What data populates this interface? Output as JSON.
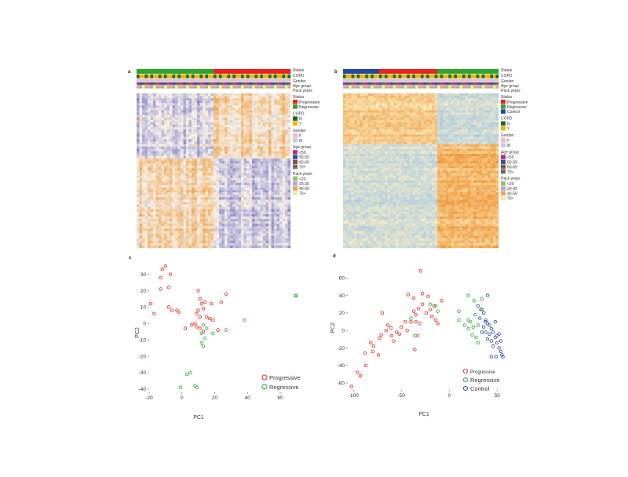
{
  "chart_data": [
    {
      "type": "heatmap",
      "panel": "a",
      "annotation_tracks": [
        "Status",
        "COPD",
        "Gender",
        "Age group",
        "Pack years"
      ],
      "legend": {
        "status": {
          "title": "Status",
          "items": [
            {
              "label": "Progressive",
              "color": "#e8241c"
            },
            {
              "label": "Regressive",
              "color": "#2ea62e"
            }
          ]
        },
        "copd": {
          "title": "COPD",
          "items": [
            {
              "label": "N",
              "color": "#1a6b2a"
            },
            {
              "label": "Y",
              "color": "#f2b400"
            }
          ]
        },
        "gender": {
          "title": "Gender",
          "items": [
            {
              "label": "F",
              "color": "#f4b6c8"
            },
            {
              "label": "M",
              "color": "#bfcde6"
            }
          ]
        },
        "age": {
          "title": "Age group",
          "items": [
            {
              "label": "<50",
              "color": "#c12a86"
            },
            {
              "label": "50-59",
              "color": "#3a4fa8"
            },
            {
              "label": "60-69",
              "color": "#7a5a3a"
            },
            {
              "label": "70+",
              "color": "#6b6b6b"
            }
          ]
        },
        "pack": {
          "title": "Pack years",
          "items": [
            {
              "label": "<20",
              "color": "#8fc26a"
            },
            {
              "label": "20-39",
              "color": "#c7a0d6"
            },
            {
              "label": "40-59",
              "color": "#e7a45a"
            },
            {
              "label": "70+",
              "color": "#f6e8a6"
            }
          ]
        }
      },
      "colors": {
        "low": "#8a86c9",
        "mid": "#f5f1ea",
        "high": "#f0a650"
      }
    },
    {
      "type": "heatmap",
      "panel": "b",
      "annotation_tracks": [
        "Status",
        "COPD",
        "Gender",
        "Age group",
        "Pack years"
      ],
      "legend": {
        "status": {
          "title": "Status",
          "items": [
            {
              "label": "Progressive",
              "color": "#e8241c"
            },
            {
              "label": "Regressive",
              "color": "#2ea62e"
            },
            {
              "label": "Control",
              "color": "#2447a0"
            }
          ]
        },
        "copd": {
          "title": "COPD",
          "items": [
            {
              "label": "N",
              "color": "#1a6b2a"
            },
            {
              "label": "Y",
              "color": "#f2b400"
            }
          ]
        },
        "gender": {
          "title": "Gender",
          "items": [
            {
              "label": "F",
              "color": "#f4b6c8"
            },
            {
              "label": "M",
              "color": "#bfcde6"
            }
          ]
        },
        "age": {
          "title": "Age group",
          "items": [
            {
              "label": "<50",
              "color": "#c12a86"
            },
            {
              "label": "50-59",
              "color": "#3a4fa8"
            },
            {
              "label": "60-69",
              "color": "#7a5a3a"
            },
            {
              "label": "70+",
              "color": "#6b6b6b"
            }
          ]
        },
        "pack": {
          "title": "Pack years",
          "items": [
            {
              "label": "<20",
              "color": "#8fc26a"
            },
            {
              "label": "20-39",
              "color": "#c7a0d6"
            },
            {
              "label": "40-59",
              "color": "#e7a45a"
            },
            {
              "label": "70+",
              "color": "#f6e8a6"
            }
          ]
        }
      },
      "colors": {
        "low": "#9ec5e6",
        "mid": "#fbeec3",
        "high": "#ef9a3c"
      }
    },
    {
      "type": "scatter",
      "panel": "c",
      "xlabel": "PC1",
      "ylabel": "PC2",
      "xlim": [
        -20,
        72
      ],
      "ylim": [
        -42,
        37
      ],
      "xticks": [
        -20,
        0,
        20,
        40,
        60
      ],
      "yticks": [
        -40,
        -30,
        -20,
        -10,
        0,
        10,
        20,
        30
      ],
      "series": [
        {
          "name": "Progressive",
          "color": "#e8241c",
          "points": [
            [
              -10,
              35
            ],
            [
              -12,
              33
            ],
            [
              -13,
              28
            ],
            [
              -7,
              30
            ],
            [
              -8,
              22
            ],
            [
              -13,
              21
            ],
            [
              -19,
              12
            ],
            [
              -17,
              6
            ],
            [
              -8,
              10
            ],
            [
              -6,
              8
            ],
            [
              -3,
              8
            ],
            [
              -2,
              7
            ],
            [
              10,
              20
            ],
            [
              11,
              15
            ],
            [
              12,
              12
            ],
            [
              14,
              13
            ],
            [
              18,
              12
            ],
            [
              13,
              9
            ],
            [
              10,
              8
            ],
            [
              9,
              6
            ],
            [
              11,
              4
            ],
            [
              15,
              4
            ],
            [
              17,
              3
            ],
            [
              24,
              13
            ],
            [
              27,
              18
            ],
            [
              8,
              0
            ],
            [
              11,
              -3
            ],
            [
              13,
              -5
            ],
            [
              6,
              -1
            ],
            [
              9,
              -2
            ],
            [
              2,
              -3
            ],
            [
              19,
              2
            ],
            [
              22,
              -4
            ]
          ]
        },
        {
          "name": "Regressive",
          "color": "#2ea62e",
          "points": [
            [
              13,
              -1
            ],
            [
              15,
              -3
            ],
            [
              12,
              -6
            ],
            [
              14,
              -9
            ],
            [
              12,
              -12
            ],
            [
              13,
              -14
            ],
            [
              19,
              -6
            ],
            [
              27,
              -4
            ],
            [
              38,
              2
            ],
            [
              70,
              17
            ],
            [
              69,
              17
            ],
            [
              -1,
              -39
            ],
            [
              8,
              -38
            ],
            [
              9,
              -39
            ],
            [
              3,
              -31
            ],
            [
              5,
              -30
            ]
          ]
        }
      ]
    },
    {
      "type": "scatter",
      "panel": "d",
      "xlabel": "PC1",
      "ylabel": "PC2",
      "xlim": [
        -106,
        58
      ],
      "ylim": [
        -68,
        80
      ],
      "xticks": [
        -100,
        -50,
        0,
        50
      ],
      "yticks": [
        -60,
        -40,
        -20,
        0,
        20,
        40,
        60
      ],
      "series": [
        {
          "name": "Progressive",
          "color": "#e8241c",
          "points": [
            [
              -102,
              -64
            ],
            [
              -96,
              -48
            ],
            [
              -93,
              -52
            ],
            [
              -87,
              -40
            ],
            [
              -88,
              -26
            ],
            [
              -82,
              -14
            ],
            [
              -80,
              -24
            ],
            [
              -79,
              -18
            ],
            [
              -74,
              -28
            ],
            [
              -73,
              -9
            ],
            [
              -71,
              -5
            ],
            [
              -66,
              0
            ],
            [
              -64,
              6
            ],
            [
              -61,
              3
            ],
            [
              -60,
              -6
            ],
            [
              -58,
              -12
            ],
            [
              -55,
              -2
            ],
            [
              -52,
              -4
            ],
            [
              -50,
              4
            ],
            [
              -46,
              10
            ],
            [
              -44,
              0
            ],
            [
              -40,
              10
            ],
            [
              -37,
              22
            ],
            [
              -35,
              18
            ],
            [
              -32,
              25
            ],
            [
              -28,
              30
            ],
            [
              -24,
              20
            ],
            [
              -20,
              24
            ],
            [
              -18,
              16
            ],
            [
              -14,
              12
            ],
            [
              -16,
              28
            ],
            [
              -22,
              39
            ],
            [
              -28,
              42
            ],
            [
              -12,
              8
            ],
            [
              -8,
              34
            ],
            [
              -30,
              68
            ],
            [
              -43,
              41
            ],
            [
              -37,
              37
            ],
            [
              -35,
              10
            ],
            [
              -31,
              8
            ],
            [
              -36,
              -22
            ],
            [
              -70,
              20
            ],
            [
              -33,
              -6
            ]
          ]
        },
        {
          "name": "Regressive",
          "color": "#2ea62e",
          "points": [
            [
              -20,
              30
            ],
            [
              -12,
              22
            ],
            [
              -40,
              14
            ],
            [
              -36,
              -6
            ],
            [
              -14,
              28
            ],
            [
              10,
              22
            ],
            [
              20,
              12
            ],
            [
              22,
              10
            ],
            [
              16,
              6
            ],
            [
              25,
              4
            ],
            [
              30,
              6
            ],
            [
              24,
              -5
            ],
            [
              20,
              2
            ],
            [
              28,
              -8
            ],
            [
              30,
              -14
            ],
            [
              27,
              18
            ],
            [
              33,
              24
            ],
            [
              10,
              12
            ],
            [
              26,
              34
            ],
            [
              34,
              36
            ],
            [
              20,
              40
            ]
          ]
        },
        {
          "name": "Control",
          "color": "#2447a0",
          "points": [
            [
              30,
              28
            ],
            [
              34,
              24
            ],
            [
              36,
              20
            ],
            [
              32,
              14
            ],
            [
              38,
              12
            ],
            [
              40,
              8
            ],
            [
              42,
              6
            ],
            [
              44,
              2
            ],
            [
              46,
              -2
            ],
            [
              48,
              -8
            ],
            [
              44,
              -12
            ],
            [
              50,
              -14
            ],
            [
              52,
              -20
            ],
            [
              54,
              -24
            ],
            [
              46,
              -18
            ],
            [
              40,
              -10
            ],
            [
              50,
              -6
            ],
            [
              42,
              -4
            ],
            [
              38,
              -2
            ],
            [
              36,
              4
            ],
            [
              34,
              -2
            ],
            [
              48,
              10
            ],
            [
              52,
              -4
            ],
            [
              54,
              -12
            ],
            [
              55,
              -28
            ],
            [
              56,
              -30
            ],
            [
              49,
              -30
            ],
            [
              44,
              -30
            ],
            [
              38,
              10
            ],
            [
              40,
              40
            ]
          ]
        }
      ]
    }
  ]
}
